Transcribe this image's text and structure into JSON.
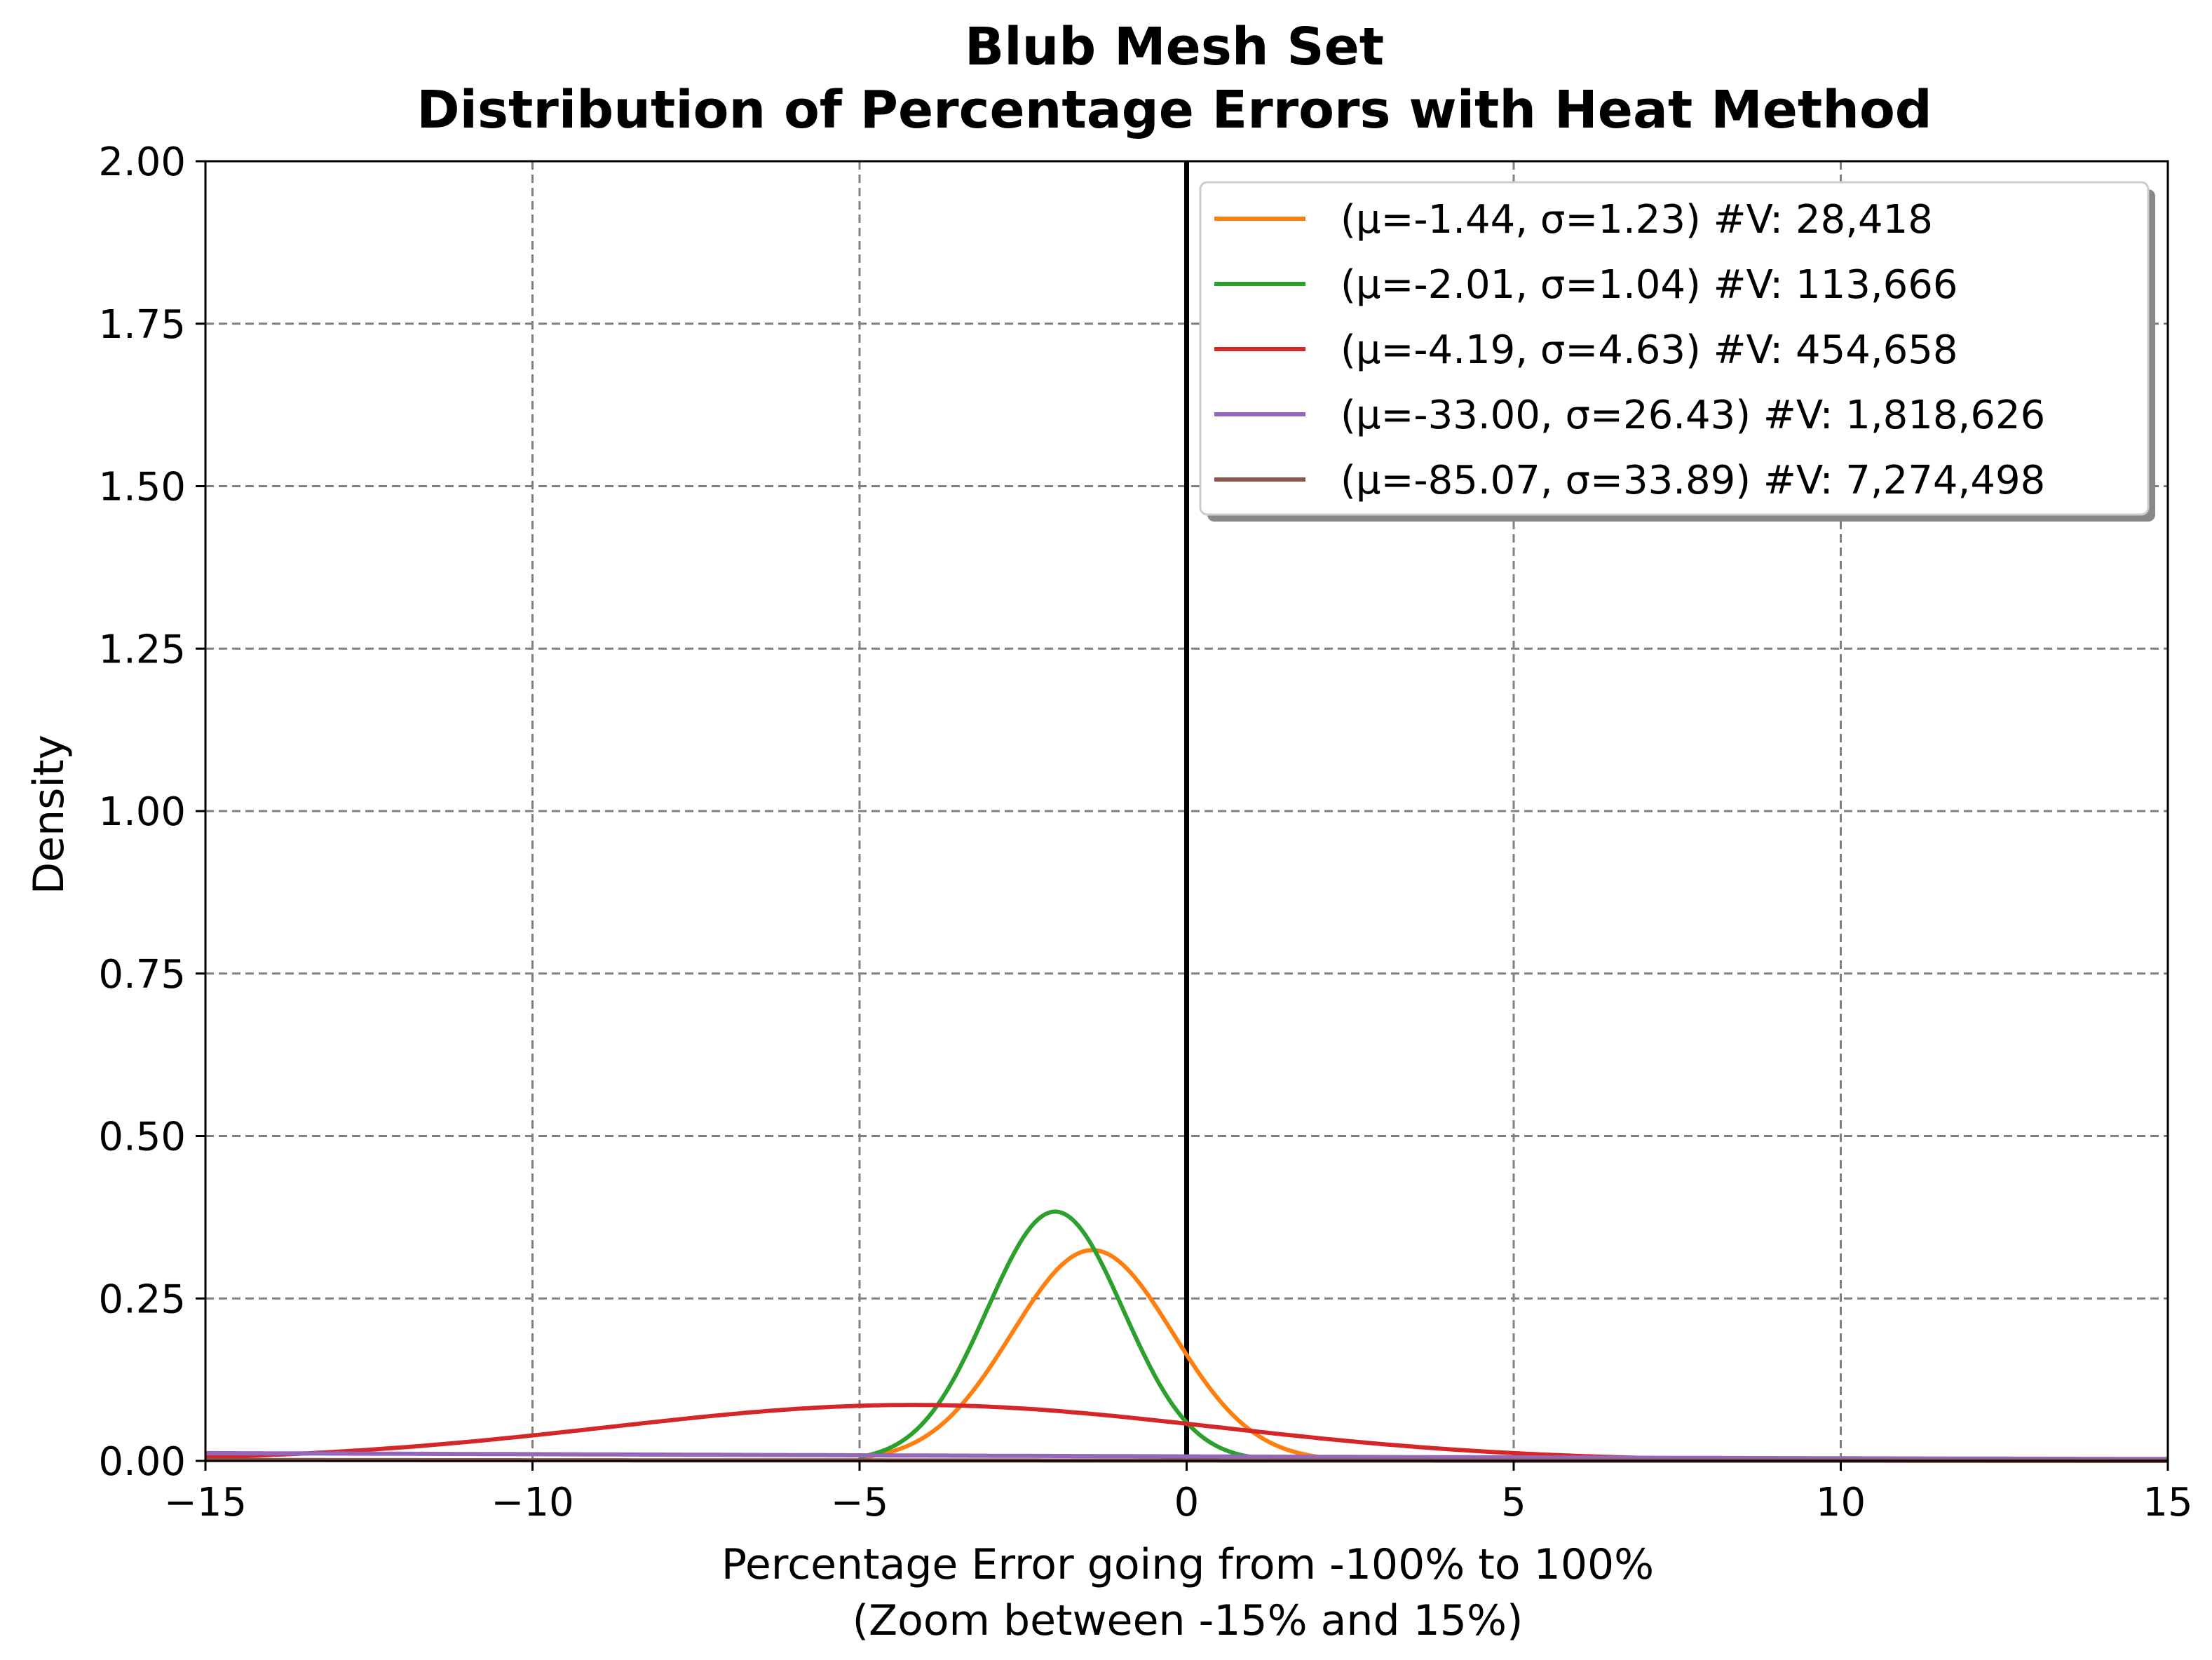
{
  "chart_data": {
    "type": "line",
    "title": "Blub Mesh Set",
    "subtitle": "Distribution of Percentage Errors with Heat Method",
    "xlabel": "Percentage Error going from -100% to 100%",
    "xlabel_sub": "(Zoom between -15% and 15%)",
    "ylabel": "Density",
    "xlim": [
      -15,
      15
    ],
    "ylim": [
      0,
      2.0
    ],
    "xticks": [
      -15,
      -10,
      -5,
      0,
      5,
      10,
      15
    ],
    "xtick_labels": [
      "−15",
      "−10",
      "−5",
      "0",
      "5",
      "10",
      "15"
    ],
    "yticks": [
      0,
      0.25,
      0.5,
      0.75,
      1.0,
      1.25,
      1.5,
      1.75,
      2.0
    ],
    "ytick_labels": [
      "0.00",
      "0.25",
      "0.50",
      "0.75",
      "1.00",
      "1.25",
      "1.50",
      "1.75",
      "2.00"
    ],
    "grid": true,
    "legend_position": "top-right",
    "reference_line_x": 0,
    "series": [
      {
        "name": "(μ=-1.44, σ=1.23) #V: 28,418",
        "color": "#ff7f0e",
        "mu": -1.44,
        "sigma": 1.23,
        "support": [
          -5,
          2
        ]
      },
      {
        "name": "(μ=-2.01, σ=1.04) #V: 113,666",
        "color": "#2ca02c",
        "mu": -2.01,
        "sigma": 1.04,
        "support": [
          -5,
          1
        ]
      },
      {
        "name": "(μ=-4.19, σ=4.63) #V: 454,658",
        "color": "#d62728",
        "mu": -4.19,
        "sigma": 4.63,
        "support": [
          -15,
          15
        ]
      },
      {
        "name": "(μ=-33.00, σ=26.43) #V: 1,818,626",
        "color": "#9467bd",
        "mu": -33.0,
        "sigma": 26.43,
        "support": [
          -15,
          15
        ]
      },
      {
        "name": "(μ=-85.07, σ=33.89) #V: 7,274,498",
        "color": "#8c564b",
        "mu": -85.07,
        "sigma": 33.89,
        "support": [
          -15,
          15
        ]
      }
    ]
  }
}
